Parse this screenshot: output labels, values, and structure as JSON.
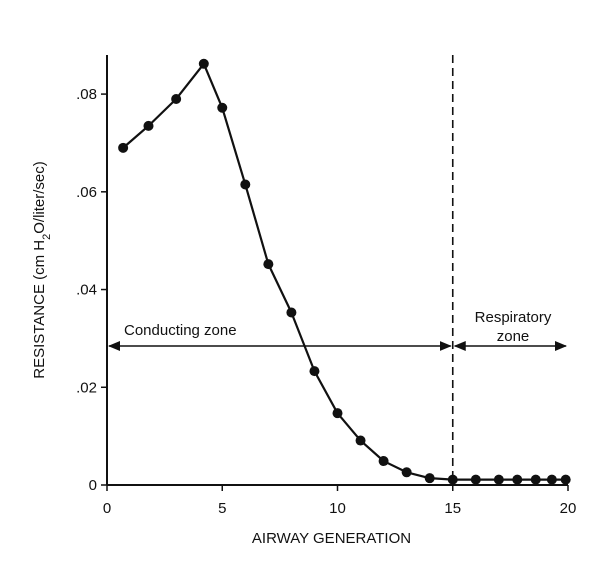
{
  "chart_data": {
    "type": "line",
    "xlabel": "AIRWAY GENERATION",
    "ylabel": "RESISTANCE (cm H2O/liter/sec)",
    "xlim": [
      0,
      20
    ],
    "ylim": [
      0,
      0.088
    ],
    "x_ticks": [
      0,
      5,
      10,
      15,
      20
    ],
    "x_tick_labels": [
      "0",
      "5",
      "10",
      "15",
      "20"
    ],
    "y_ticks": [
      0,
      0.02,
      0.04,
      0.06,
      0.08
    ],
    "y_tick_labels": [
      "0",
      ".02",
      ".04",
      ".06",
      ".08"
    ],
    "grid": false,
    "series": [
      {
        "x": [
          0.7,
          1.8,
          3.0,
          4.2,
          5.0,
          6.0,
          7.0,
          8.0,
          9.0,
          10.0,
          11.0,
          12.0,
          13.0,
          14.0,
          15.0,
          16.0,
          17.0,
          17.8,
          18.6,
          19.3,
          19.9
        ],
        "y": [
          0.069,
          0.0735,
          0.079,
          0.0862,
          0.0772,
          0.0615,
          0.0452,
          0.0353,
          0.0233,
          0.0147,
          0.0091,
          0.0049,
          0.0026,
          0.0014,
          0.0011,
          0.0011,
          0.0011,
          0.0011,
          0.0011,
          0.0011,
          0.0011
        ]
      }
    ],
    "divider_x": 15,
    "annotations": [
      {
        "text": "Conducting zone",
        "span": [
          0,
          15
        ]
      },
      {
        "text": "Respiratory\nzone",
        "span": [
          15,
          20
        ]
      }
    ]
  }
}
